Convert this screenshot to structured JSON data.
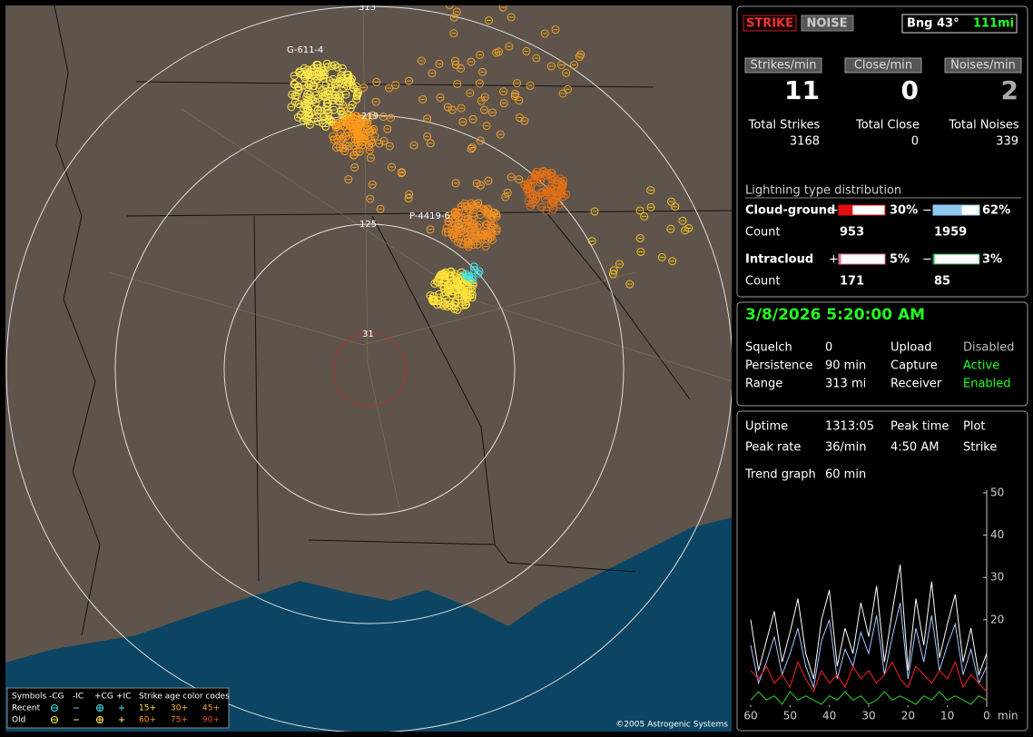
{
  "map": {
    "labels": [
      "G-611-4",
      "219",
      "P-4419-6",
      "125",
      "31",
      "313"
    ],
    "copyright": "©2005 Astrogenic Systems",
    "legend": {
      "symbols_title": "Symbols",
      "columns": [
        "-CG",
        "-IC",
        "+CG",
        "+IC"
      ],
      "rows": [
        "Recent",
        "Old"
      ],
      "age_title": "Strike age color codes",
      "ages_recent": [
        "15+",
        "30+",
        "45+"
      ],
      "ages_old": [
        "60+",
        "75+",
        "90+"
      ]
    }
  },
  "status": {
    "buttons": [
      "STRIKE",
      "NOISE"
    ],
    "bearing": "Bng 43°",
    "distance": "111mi",
    "rate_labels": [
      "Strikes/min",
      "Close/min",
      "Noises/min"
    ],
    "rates": [
      11,
      0,
      2
    ],
    "total_labels": [
      "Total Strikes",
      "Total Close",
      "Total Noises"
    ],
    "totals": [
      3168,
      0,
      339
    ]
  },
  "distribution": {
    "title": "Lightning type distribution",
    "count_label": "Count",
    "cloud_ground": {
      "name": "Cloud-ground",
      "plus": {
        "value": 30,
        "label": "30%"
      },
      "minus": {
        "value": 62,
        "label": "62%"
      },
      "counts": [
        953,
        1959
      ]
    },
    "intracloud": {
      "name": "Intracloud",
      "plus": {
        "value": 5,
        "label": "5%"
      },
      "minus": {
        "value": 3,
        "label": "3%"
      },
      "counts": [
        171,
        85
      ]
    }
  },
  "settings": {
    "datetime": "3/8/2026 5:20:00 AM",
    "rows": [
      [
        "Squelch",
        "0",
        "Upload",
        "Disabled"
      ],
      [
        "Persistence",
        "90 min",
        "Capture",
        "Active"
      ],
      [
        "Range",
        "313 mi",
        "Receiver",
        "Enabled"
      ]
    ]
  },
  "info": {
    "rows": [
      [
        "Uptime",
        "1313:05",
        "Peak time",
        "Plot"
      ],
      [
        "Peak rate",
        "36/min",
        "4:50 AM",
        "Strike"
      ]
    ],
    "trend_label": "Trend graph",
    "trend_span": "60 min"
  },
  "chart_data": {
    "type": "line",
    "x": [
      60,
      58,
      56,
      54,
      52,
      50,
      48,
      46,
      44,
      42,
      40,
      38,
      36,
      34,
      32,
      30,
      28,
      26,
      24,
      22,
      20,
      18,
      16,
      14,
      12,
      10,
      8,
      6,
      4,
      2,
      0
    ],
    "xlim": [
      60,
      0
    ],
    "xticks": [
      60,
      50,
      40,
      30,
      20,
      10,
      0
    ],
    "xlabel": "min",
    "ylim": [
      0,
      50
    ],
    "yticks": [
      20,
      30,
      40,
      50
    ],
    "series": [
      {
        "color": "#ffffff",
        "values": [
          20,
          8,
          15,
          22,
          10,
          17,
          25,
          12,
          6,
          20,
          27,
          9,
          18,
          12,
          24,
          16,
          28,
          10,
          22,
          33,
          8,
          25,
          14,
          29,
          11,
          19,
          26,
          10,
          18,
          7,
          12
        ]
      },
      {
        "color": "#a8c8ff",
        "values": [
          14,
          5,
          10,
          16,
          7,
          12,
          18,
          9,
          4,
          15,
          20,
          6,
          13,
          9,
          17,
          12,
          21,
          7,
          16,
          24,
          6,
          18,
          10,
          21,
          8,
          14,
          19,
          7,
          13,
          5,
          9
        ]
      },
      {
        "color": "#ff2020",
        "values": [
          8,
          6,
          9,
          5,
          7,
          4,
          10,
          6,
          3,
          8,
          5,
          7,
          4,
          9,
          6,
          8,
          5,
          7,
          10,
          6,
          4,
          9,
          7,
          5,
          8,
          6,
          10,
          4,
          7,
          5,
          3
        ]
      },
      {
        "color": "#30d030",
        "values": [
          1,
          3,
          1,
          2,
          0,
          3,
          1,
          2,
          1,
          0,
          2,
          1,
          3,
          1,
          2,
          0,
          1,
          3,
          1,
          2,
          1,
          0,
          2,
          1,
          3,
          1,
          2,
          1,
          0,
          2,
          1
        ]
      }
    ]
  }
}
